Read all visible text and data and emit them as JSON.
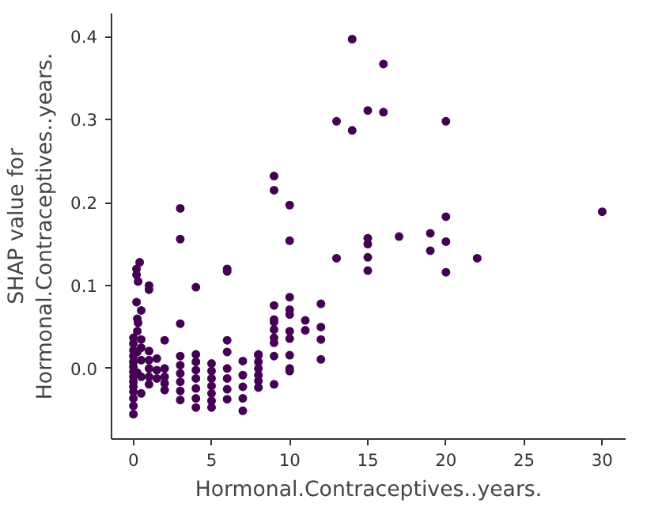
{
  "chart_data": {
    "type": "scatter",
    "xlabel": "Hormonal.Contraceptives..years.",
    "ylabel": "SHAP value for\nHormonal.Contraceptives..years.",
    "xlim": [
      -1.4,
      31.5
    ],
    "ylim": [
      -0.085,
      0.428
    ],
    "xticks": [
      0,
      5,
      10,
      15,
      20,
      25,
      30
    ],
    "yticks": [
      {
        "value": 0.0,
        "label": "0.0"
      },
      {
        "value": 0.1,
        "label": "0.1"
      },
      {
        "value": 0.2,
        "label": "0.2"
      },
      {
        "value": 0.3,
        "label": "0.3"
      },
      {
        "value": 0.4,
        "label": "0.4"
      }
    ],
    "grid": false,
    "marker": "circle",
    "series": [
      {
        "color": "#440154",
        "x": [
          14,
          16,
          15,
          16,
          13,
          14,
          20,
          9,
          9,
          10,
          3,
          20,
          30,
          10,
          15,
          15,
          17,
          19,
          20,
          19,
          13,
          15,
          22,
          15,
          20,
          10,
          12,
          10,
          11,
          12,
          11,
          10,
          10,
          12,
          10,
          12,
          10,
          10,
          3,
          6,
          6,
          4,
          3,
          0.4,
          0.2,
          0.2,
          0.3,
          1,
          1,
          9,
          9,
          9,
          9,
          9,
          9,
          9,
          9,
          8,
          10,
          0,
          0,
          0,
          0,
          0,
          0,
          0,
          0,
          0,
          0,
          0,
          0,
          0,
          0,
          0.25,
          0.25,
          0.25,
          0.25,
          0.5,
          0.5,
          0.5,
          0.5,
          0.5,
          0.2,
          0.3,
          0.5,
          1,
          1,
          1,
          1,
          1,
          1.5,
          1.5,
          1.5,
          2,
          2,
          2,
          2,
          2,
          3,
          3,
          3,
          3,
          3,
          3,
          4,
          4,
          4,
          4,
          4,
          4,
          4,
          5,
          5,
          5,
          5,
          5,
          5,
          5,
          6,
          6,
          6,
          6,
          6,
          6,
          7,
          7,
          7,
          7,
          7,
          8,
          8,
          8,
          8,
          8,
          8
        ],
        "values": [
          0.397,
          0.367,
          0.311,
          0.309,
          0.298,
          0.287,
          0.298,
          0.232,
          0.215,
          0.197,
          0.193,
          0.183,
          0.189,
          0.154,
          0.157,
          0.15,
          0.159,
          0.163,
          0.153,
          0.142,
          0.133,
          0.134,
          0.133,
          0.118,
          0.116,
          0.086,
          0.078,
          0.065,
          0.058,
          0.05,
          0.046,
          0.045,
          0.036,
          0.035,
          0.016,
          0.011,
          0.0,
          -0.003,
          0.156,
          0.12,
          0.117,
          0.098,
          0.054,
          0.128,
          0.12,
          0.113,
          0.105,
          0.1,
          0.095,
          0.076,
          0.059,
          0.056,
          0.047,
          0.037,
          0.031,
          0.015,
          -0.019,
          0.016,
          0.071,
          0.037,
          0.03,
          0.022,
          0.015,
          0.008,
          0.002,
          -0.004,
          -0.01,
          -0.016,
          -0.022,
          -0.028,
          -0.036,
          -0.045,
          -0.055,
          0.06,
          0.045,
          0.02,
          -0.005,
          0.07,
          0.035,
          0.01,
          -0.01,
          -0.03,
          0.08,
          0.055,
          0.025,
          0.021,
          0.01,
          0.0,
          -0.01,
          -0.019,
          0.012,
          -0.002,
          -0.012,
          0.034,
          0.0,
          -0.01,
          -0.018,
          -0.026,
          0.015,
          0.004,
          -0.006,
          -0.016,
          -0.027,
          -0.038,
          0.017,
          0.008,
          -0.002,
          -0.012,
          -0.024,
          -0.036,
          -0.047,
          0.006,
          -0.003,
          -0.012,
          -0.021,
          -0.03,
          -0.039,
          -0.047,
          0.034,
          0.02,
          0.0,
          -0.012,
          -0.025,
          -0.037,
          0.009,
          -0.008,
          -0.022,
          -0.036,
          -0.051,
          0.017,
          0.008,
          0.0,
          -0.008,
          -0.015,
          -0.023
        ]
      }
    ]
  }
}
